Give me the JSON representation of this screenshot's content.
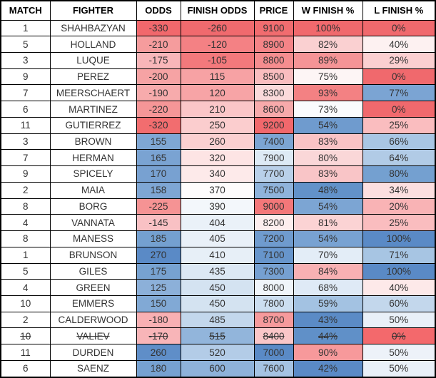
{
  "colors": {
    "border": "#000000",
    "header_bg": "#ffffff",
    "cell_bg_default": "#ffffff",
    "header_text": "#000000",
    "cell_text": "#333333",
    "scale_low_red": "#f0696d",
    "scale_mid_white": "#fcfcff",
    "scale_high_blue": "#5a8ac6"
  },
  "table": {
    "columns": [
      {
        "key": "match",
        "label": "MATCH"
      },
      {
        "key": "fighter",
        "label": "FIGHTER"
      },
      {
        "key": "odds",
        "label": "ODDS"
      },
      {
        "key": "finish_odds",
        "label": "FINISH ODDS"
      },
      {
        "key": "price",
        "label": "PRICE"
      },
      {
        "key": "w_finish",
        "label": "W FINISH %"
      },
      {
        "key": "l_finish",
        "label": "L FINISH %"
      }
    ],
    "rows": [
      {
        "struck": false,
        "cells": [
          {
            "v": "1"
          },
          {
            "v": "SHAHBAZYAN"
          },
          {
            "v": "-330",
            "bg": "#f1686c"
          },
          {
            "v": "-260",
            "bg": "#f06a6e"
          },
          {
            "v": "9100",
            "bg": "#f16c6f"
          },
          {
            "v": "100%",
            "bg": "#f0696d"
          },
          {
            "v": "0%",
            "bg": "#f0696d"
          }
        ]
      },
      {
        "struck": false,
        "cells": [
          {
            "v": "5"
          },
          {
            "v": "HOLLAND"
          },
          {
            "v": "-210",
            "bg": "#f59c9d"
          },
          {
            "v": "-120",
            "bg": "#f48184"
          },
          {
            "v": "8900",
            "bg": "#f48487"
          },
          {
            "v": "82%",
            "bg": "#fad0d1"
          },
          {
            "v": "40%",
            "bg": "#fdf1f1"
          }
        ]
      },
      {
        "struck": false,
        "cells": [
          {
            "v": "3"
          },
          {
            "v": "LUQUE"
          },
          {
            "v": "-175",
            "bg": "#f8b6b9"
          },
          {
            "v": "-105",
            "bg": "#f3797c"
          },
          {
            "v": "8800",
            "bg": "#f58d8f"
          },
          {
            "v": "89%",
            "bg": "#f59496"
          },
          {
            "v": "29%",
            "bg": "#fbd0d1"
          }
        ]
      },
      {
        "struck": false,
        "cells": [
          {
            "v": "9"
          },
          {
            "v": "PEREZ"
          },
          {
            "v": "-200",
            "bg": "#f6a3a4"
          },
          {
            "v": "115",
            "bg": "#f7a2a4"
          },
          {
            "v": "8500",
            "bg": "#f9bdbf"
          },
          {
            "v": "75%",
            "bg": "#fdf5f5"
          },
          {
            "v": "0%",
            "bg": "#f0696d"
          }
        ]
      },
      {
        "struck": false,
        "cells": [
          {
            "v": "7"
          },
          {
            "v": "MEERSCHAERT"
          },
          {
            "v": "-190",
            "bg": "#f7abac"
          },
          {
            "v": "120",
            "bg": "#f7a4a6"
          },
          {
            "v": "8300",
            "bg": "#fbdadb"
          },
          {
            "v": "93%",
            "bg": "#f38183"
          },
          {
            "v": "77%",
            "bg": "#7ba4d3"
          }
        ]
      },
      {
        "struck": false,
        "cells": [
          {
            "v": "6"
          },
          {
            "v": "MARTINEZ"
          },
          {
            "v": "-220",
            "bg": "#f59697"
          },
          {
            "v": "210",
            "bg": "#fbc6c8"
          },
          {
            "v": "8600",
            "bg": "#f7aaab"
          },
          {
            "v": "73%",
            "bg": "#fafbfd"
          },
          {
            "v": "0%",
            "bg": "#f0696d"
          }
        ]
      },
      {
        "struck": false,
        "cells": [
          {
            "v": "11"
          },
          {
            "v": "GUTIERREZ"
          },
          {
            "v": "-320",
            "bg": "#f26d6f"
          },
          {
            "v": "250",
            "bg": "#fbcdce"
          },
          {
            "v": "9200",
            "bg": "#f1686c"
          },
          {
            "v": "54%",
            "bg": "#6f9bce"
          },
          {
            "v": "25%",
            "bg": "#fabdbf"
          }
        ]
      },
      {
        "struck": false,
        "cells": [
          {
            "v": "3"
          },
          {
            "v": "BROWN"
          },
          {
            "v": "155",
            "bg": "#7fa7d4"
          },
          {
            "v": "260",
            "bg": "#fbd0d1"
          },
          {
            "v": "7400",
            "bg": "#7ca5d3"
          },
          {
            "v": "83%",
            "bg": "#f9c3c5"
          },
          {
            "v": "66%",
            "bg": "#a9c6e4"
          }
        ]
      },
      {
        "struck": false,
        "cells": [
          {
            "v": "7"
          },
          {
            "v": "HERMAN"
          },
          {
            "v": "165",
            "bg": "#7aa3d2"
          },
          {
            "v": "320",
            "bg": "#fde4e4"
          },
          {
            "v": "7900",
            "bg": "#ddeaf5"
          },
          {
            "v": "80%",
            "bg": "#fad7d8"
          },
          {
            "v": "64%",
            "bg": "#b1cbe6"
          }
        ]
      },
      {
        "struck": false,
        "cells": [
          {
            "v": "9"
          },
          {
            "v": "SPICELY"
          },
          {
            "v": "170",
            "bg": "#78a1d1"
          },
          {
            "v": "340",
            "bg": "#fdeaea"
          },
          {
            "v": "7700",
            "bg": "#b9d0e9"
          },
          {
            "v": "83%",
            "bg": "#f9c5c7"
          },
          {
            "v": "80%",
            "bg": "#74a0d0"
          }
        ]
      },
      {
        "struck": false,
        "cells": [
          {
            "v": "2"
          },
          {
            "v": "MAIA"
          },
          {
            "v": "158",
            "bg": "#7ea6d4"
          },
          {
            "v": "370",
            "bg": "#fefcfc"
          },
          {
            "v": "7500",
            "bg": "#8fb3db"
          },
          {
            "v": "48%",
            "bg": "#6292c9"
          },
          {
            "v": "34%",
            "bg": "#fcdfe0"
          }
        ]
      },
      {
        "struck": false,
        "cells": [
          {
            "v": "8"
          },
          {
            "v": "BORG"
          },
          {
            "v": "-225",
            "bg": "#f59394"
          },
          {
            "v": "390",
            "bg": "#f3f7fb"
          },
          {
            "v": "9000",
            "bg": "#f37779"
          },
          {
            "v": "54%",
            "bg": "#7ca5d3"
          },
          {
            "v": "20%",
            "bg": "#f9b3b5"
          }
        ]
      },
      {
        "struck": false,
        "cells": [
          {
            "v": "4"
          },
          {
            "v": "VANNATA"
          },
          {
            "v": "-145",
            "bg": "#f9c1c4"
          },
          {
            "v": "404",
            "bg": "#eaf1f8"
          },
          {
            "v": "8200",
            "bg": "#fdeeee"
          },
          {
            "v": "81%",
            "bg": "#fbd3d4"
          },
          {
            "v": "25%",
            "bg": "#fabdbf"
          }
        ]
      },
      {
        "struck": false,
        "cells": [
          {
            "v": "8"
          },
          {
            "v": "MANESS"
          },
          {
            "v": "185",
            "bg": "#74a0d0"
          },
          {
            "v": "405",
            "bg": "#e9f0f8"
          },
          {
            "v": "7200",
            "bg": "#6f9bce"
          },
          {
            "v": "54%",
            "bg": "#78a2d2"
          },
          {
            "v": "100%",
            "bg": "#5a8ac6"
          }
        ]
      },
      {
        "struck": false,
        "cells": [
          {
            "v": "1"
          },
          {
            "v": "BRUNSON"
          },
          {
            "v": "270",
            "bg": "#5a8ac6"
          },
          {
            "v": "410",
            "bg": "#e7eff7"
          },
          {
            "v": "7100",
            "bg": "#6795cb"
          },
          {
            "v": "70%",
            "bg": "#e3edf7"
          },
          {
            "v": "71%",
            "bg": "#a7c5e3"
          }
        ]
      },
      {
        "struck": false,
        "cells": [
          {
            "v": "5"
          },
          {
            "v": "GILES"
          },
          {
            "v": "175",
            "bg": "#77a2d1"
          },
          {
            "v": "435",
            "bg": "#dce8f4"
          },
          {
            "v": "7300",
            "bg": "#76a0d1"
          },
          {
            "v": "84%",
            "bg": "#f8b1b3"
          },
          {
            "v": "100%",
            "bg": "#5a8ac6"
          }
        ]
      },
      {
        "struck": false,
        "cells": [
          {
            "v": "4"
          },
          {
            "v": "GREEN"
          },
          {
            "v": "125",
            "bg": "#8cb0d9"
          },
          {
            "v": "450",
            "bg": "#d4e3f1"
          },
          {
            "v": "8000",
            "bg": "#f0f5fa"
          },
          {
            "v": "68%",
            "bg": "#dfeaf6"
          },
          {
            "v": "40%",
            "bg": "#fde9e9"
          }
        ]
      },
      {
        "struck": false,
        "cells": [
          {
            "v": "10"
          },
          {
            "v": "EMMERS"
          },
          {
            "v": "150",
            "bg": "#81a9d5"
          },
          {
            "v": "450",
            "bg": "#d4e3f1"
          },
          {
            "v": "7800",
            "bg": "#ccdef0"
          },
          {
            "v": "59%",
            "bg": "#a3c2e2"
          },
          {
            "v": "60%",
            "bg": "#c3d7ec"
          }
        ]
      },
      {
        "struck": false,
        "cells": [
          {
            "v": "2"
          },
          {
            "v": "CALDERWOOD"
          },
          {
            "v": "-180",
            "bg": "#f8b0b3"
          },
          {
            "v": "485",
            "bg": "#c3d7ec"
          },
          {
            "v": "8700",
            "bg": "#f69a9c"
          },
          {
            "v": "43%",
            "bg": "#5b8bc6"
          },
          {
            "v": "50%",
            "bg": "#e9f0f8"
          }
        ]
      },
      {
        "struck": true,
        "cells": [
          {
            "v": "10"
          },
          {
            "v": "VALIEV"
          },
          {
            "v": "-170",
            "bg": "#f8b5b8"
          },
          {
            "v": "515",
            "bg": "#92b5db"
          },
          {
            "v": "8400",
            "bg": "#fac6c8"
          },
          {
            "v": "44%",
            "bg": "#6090c8"
          },
          {
            "v": "0%",
            "bg": "#f3696c"
          }
        ]
      },
      {
        "struck": false,
        "cells": [
          {
            "v": "11"
          },
          {
            "v": "DURDEN"
          },
          {
            "v": "260",
            "bg": "#5f8ec8"
          },
          {
            "v": "520",
            "bg": "#b3cce7"
          },
          {
            "v": "7000",
            "bg": "#5a8ac6"
          },
          {
            "v": "90%",
            "bg": "#f7999b"
          },
          {
            "v": "50%",
            "bg": "#edf2f9"
          }
        ]
      },
      {
        "struck": false,
        "cells": [
          {
            "v": "6"
          },
          {
            "v": "SAENZ"
          },
          {
            "v": "180",
            "bg": "#76a1d1"
          },
          {
            "v": "600",
            "bg": "#8eb2da"
          },
          {
            "v": "7600",
            "bg": "#a5c3e3"
          },
          {
            "v": "42%",
            "bg": "#5a8ac6"
          },
          {
            "v": "50%",
            "bg": "#e9f0f8"
          }
        ]
      }
    ]
  },
  "chart_data": {
    "type": "table",
    "columns": [
      "MATCH",
      "FIGHTER",
      "ODDS",
      "FINISH ODDS",
      "PRICE",
      "W FINISH %",
      "L FINISH %"
    ],
    "rows": [
      [
        1,
        "SHAHBAZYAN",
        -330,
        -260,
        9100,
        100,
        0
      ],
      [
        5,
        "HOLLAND",
        -210,
        -120,
        8900,
        82,
        40
      ],
      [
        3,
        "LUQUE",
        -175,
        -105,
        8800,
        89,
        29
      ],
      [
        9,
        "PEREZ",
        -200,
        115,
        8500,
        75,
        0
      ],
      [
        7,
        "MEERSCHAERT",
        -190,
        120,
        8300,
        93,
        77
      ],
      [
        6,
        "MARTINEZ",
        -220,
        210,
        8600,
        73,
        0
      ],
      [
        11,
        "GUTIERREZ",
        -320,
        250,
        9200,
        54,
        25
      ],
      [
        3,
        "BROWN",
        155,
        260,
        7400,
        83,
        66
      ],
      [
        7,
        "HERMAN",
        165,
        320,
        7900,
        80,
        64
      ],
      [
        9,
        "SPICELY",
        170,
        340,
        7700,
        83,
        80
      ],
      [
        2,
        "MAIA",
        158,
        370,
        7500,
        48,
        34
      ],
      [
        8,
        "BORG",
        -225,
        390,
        9000,
        54,
        20
      ],
      [
        4,
        "VANNATA",
        -145,
        404,
        8200,
        81,
        25
      ],
      [
        8,
        "MANESS",
        185,
        405,
        7200,
        54,
        100
      ],
      [
        1,
        "BRUNSON",
        270,
        410,
        7100,
        70,
        71
      ],
      [
        5,
        "GILES",
        175,
        435,
        7300,
        84,
        100
      ],
      [
        4,
        "GREEN",
        125,
        450,
        8000,
        68,
        40
      ],
      [
        10,
        "EMMERS",
        150,
        450,
        7800,
        59,
        60
      ],
      [
        2,
        "CALDERWOOD",
        -180,
        485,
        8700,
        43,
        50
      ],
      [
        10,
        "VALIEV",
        -170,
        515,
        8400,
        44,
        0
      ],
      [
        11,
        "DURDEN",
        260,
        520,
        7000,
        90,
        50
      ],
      [
        6,
        "SAENZ",
        180,
        600,
        7600,
        42,
        50
      ]
    ],
    "struck_rows": [
      "VALIEV"
    ],
    "layout_hints": {
      "conditional_formatting": "3-color scale red-white-blue per column",
      "grid": "black 1px cell borders, 2px outer border",
      "header": "bold, white background"
    }
  }
}
